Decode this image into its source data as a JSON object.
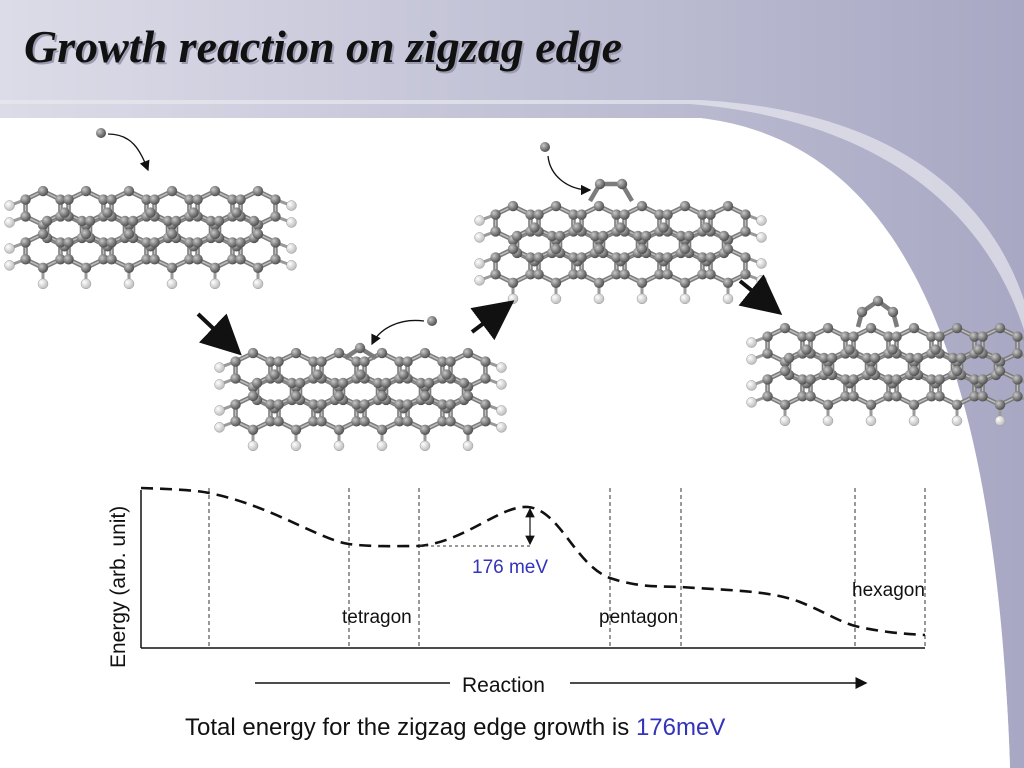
{
  "title": "Growth reaction on zigzag edge",
  "diagram": {
    "y_axis_label": "Energy (arb. unit)",
    "x_axis_label": "Reaction",
    "states": [
      {
        "label": "tetragon"
      },
      {
        "label": "pentagon"
      },
      {
        "label": "hexagon"
      }
    ],
    "barrier_label": "176 meV"
  },
  "caption": {
    "text": "Total energy for the zigzag edge growth is",
    "value": "176meV"
  },
  "colors": {
    "accent": "#3333bb",
    "band": "#c8c8dc",
    "carbon": "#808080",
    "hydrogen": "#f0f0f0"
  }
}
